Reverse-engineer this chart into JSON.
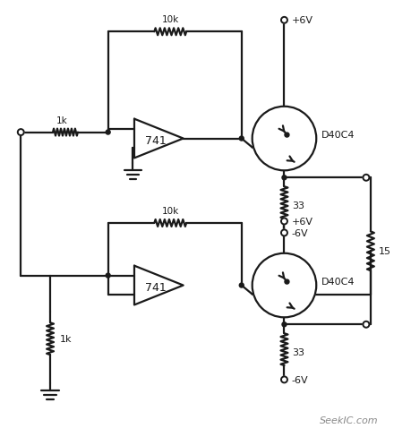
{
  "bg_color": "#ffffff",
  "line_color": "#1a1a1a",
  "line_width": 1.6,
  "fig_width": 4.6,
  "fig_height": 4.89,
  "watermark": "SeekIC.com",
  "labels": {
    "r1k_top": "1k",
    "r10k_top": "10k",
    "r10k_bot": "10k",
    "r1k_bot": "1k",
    "r33_top": "33",
    "r33_bot": "33",
    "r15": "15",
    "opamp_top": "741",
    "opamp_bot": "741",
    "trans_top": "D40C4",
    "trans_bot": "D40C4",
    "vp6_top": "+6V",
    "vm6_top": "-6V",
    "vp6_bot": "+6V",
    "vm6_bot": "-6V"
  }
}
